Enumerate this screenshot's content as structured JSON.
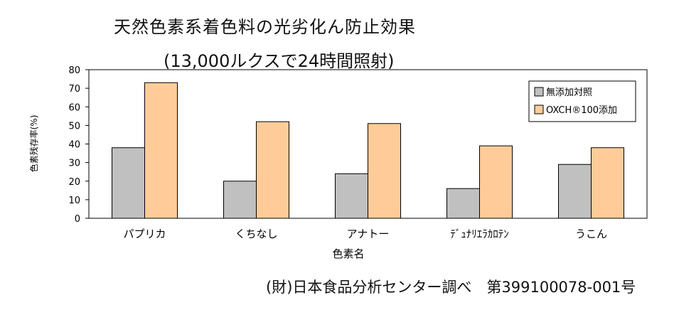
{
  "title": "天然色素系着色料の光劣化ん防止効果",
  "subtitle": "(13,000ルクスで24時間照射)",
  "footer": "(財)日本食品分析センター調べ　第399100078-001号",
  "chart_data": {
    "type": "bar",
    "xlabel": "色素名",
    "ylabel": "色素残存率(%)",
    "ylim": [
      0,
      80
    ],
    "yticks": [
      0,
      10,
      20,
      30,
      40,
      50,
      60,
      70,
      80
    ],
    "grid": false,
    "legend_position": "top-right",
    "categories": [
      "パプリカ",
      "くちなし",
      "アナトー",
      "ﾃﾞｭﾅﾘｴﾗｶﾛﾃﾝ",
      "うこん"
    ],
    "series": [
      {
        "name": "無添加対照",
        "color": "#c0c0c0",
        "values": [
          38,
          20,
          24,
          16,
          29
        ]
      },
      {
        "name": "OXCH®100添加",
        "color": "#ffcc99",
        "values": [
          73,
          52,
          51,
          39,
          38
        ]
      }
    ]
  }
}
